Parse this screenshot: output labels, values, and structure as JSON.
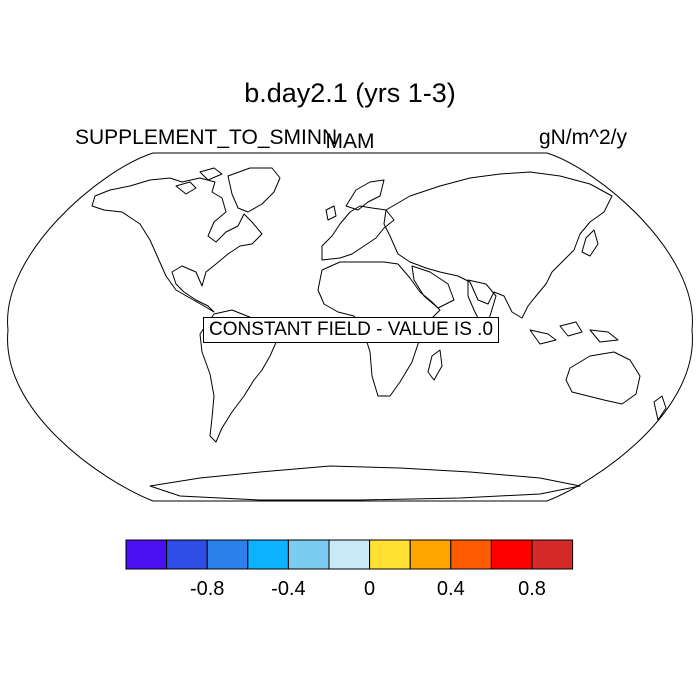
{
  "title": "b.day2.1 (yrs 1-3)",
  "left_label": "SUPPLEMENT_TO_SMINN",
  "center_label": "MAM",
  "units": "gN/m^2/y",
  "notice": "CONSTANT FIELD - VALUE IS .0",
  "projection": "robinson",
  "colorbar": {
    "colors": [
      "#4a10f2",
      "#2e4de6",
      "#2c80ee",
      "#0db2ff",
      "#7ccbf0",
      "#cae9f7",
      "#ffe033",
      "#ffa500",
      "#ff5b05",
      "#ff0000",
      "#d42a2a"
    ],
    "tick_labels": [
      "-0.8",
      "-0.4",
      "0",
      "0.4",
      "0.8"
    ]
  }
}
